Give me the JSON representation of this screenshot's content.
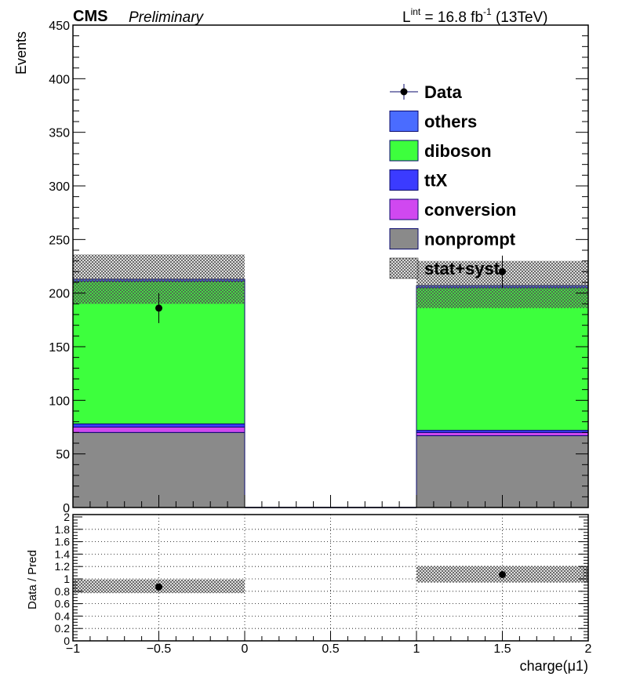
{
  "header": {
    "experiment": "CMS",
    "status": "Preliminary",
    "lumi_main": "L",
    "lumi_sup": "int",
    "lumi_value": " = 16.8 fb",
    "lumi_exp": "-1",
    "lumi_energy": " (13TeV)"
  },
  "colors": {
    "nonprompt": "#8a8a8a",
    "conversion": "#d048f0",
    "ttX": "#3b3bff",
    "diboson": "#3dff3d",
    "others": "#4a6cff",
    "outline": "#0a0a6e",
    "data": "#000000",
    "uncertainty": "#666666"
  },
  "chart_data": [
    {
      "type": "bar",
      "stacked": true,
      "xlabel": "",
      "ylabel": "Events",
      "xlim": [
        -1,
        2
      ],
      "ylim": [
        0,
        450
      ],
      "yticks": [
        0,
        50,
        100,
        150,
        200,
        250,
        300,
        350,
        400,
        450
      ],
      "bins": [
        [
          -1,
          0
        ],
        [
          0,
          1
        ],
        [
          1,
          2
        ]
      ],
      "bin_centers": [
        -0.5,
        0.5,
        1.5
      ],
      "series": [
        {
          "name": "nonprompt",
          "values": [
            70,
            0,
            67
          ]
        },
        {
          "name": "conversion",
          "values": [
            5,
            0,
            3
          ]
        },
        {
          "name": "ttX",
          "values": [
            3,
            0,
            2
          ]
        },
        {
          "name": "diboson",
          "values": [
            133,
            0,
            133
          ]
        },
        {
          "name": "others",
          "values": [
            2,
            0,
            2
          ]
        }
      ],
      "uncertainty": {
        "name": "stat+syst",
        "low": [
          190,
          0,
          186
        ],
        "high": [
          236,
          0,
          230
        ]
      },
      "data": {
        "name": "Data",
        "values": [
          186,
          0,
          220
        ],
        "err_low": [
          14,
          0,
          15
        ],
        "err_high": [
          14,
          0,
          15
        ]
      },
      "legend": {
        "placement": "top-right",
        "entries": [
          "Data",
          "others",
          "diboson",
          "ttX",
          "conversion",
          "nonprompt",
          "stat+syst"
        ]
      }
    },
    {
      "type": "scatter",
      "xlabel": "charge(μ1)",
      "ylabel": "Data / Pred",
      "xlim": [
        -1,
        2
      ],
      "ylim": [
        0,
        2
      ],
      "xticks": [
        -1,
        -0.5,
        0,
        0.5,
        1,
        1.5,
        2
      ],
      "xtick_labels": [
        "−1",
        "−0.5",
        "0",
        "0.5",
        "1",
        "1.5",
        "2"
      ],
      "yticks": [
        0,
        0.2,
        0.4,
        0.6,
        0.8,
        1,
        1.2,
        1.4,
        1.6,
        1.8,
        2
      ],
      "ytick_labels": [
        "0",
        "0.2",
        "0.4",
        "0.6",
        "0.8",
        "1",
        "1.2",
        "1.4",
        "1.6",
        "1.8",
        "2"
      ],
      "grid": true,
      "x": [
        -0.5,
        1.5
      ],
      "y": [
        0.87,
        1.07
      ],
      "band": {
        "bins": [
          [
            -1,
            0
          ],
          [
            1,
            2
          ]
        ],
        "low": [
          0.77,
          0.94
        ],
        "high": [
          0.99,
          1.21
        ]
      }
    }
  ]
}
